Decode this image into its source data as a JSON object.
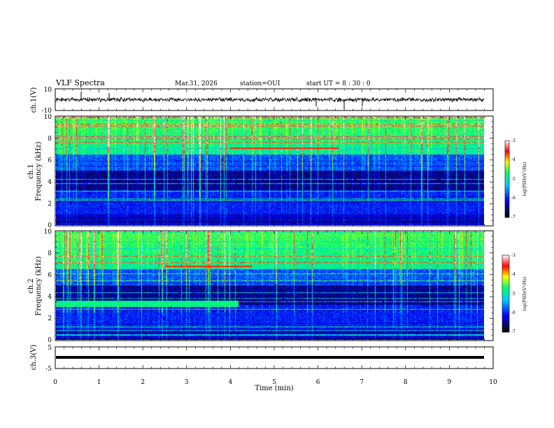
{
  "header": {
    "title": "VLF Spectra",
    "date": "Mar.31, 2026",
    "station": "station=OUI",
    "start_ut": "start  UT =   8 : 30 : 0"
  },
  "colors": {
    "frame": "#000000",
    "background": "#ffffff",
    "colormap": [
      "#000000",
      "#08084a",
      "#0000ff",
      "#00d8ff",
      "#00ff66",
      "#ffff00",
      "#ff0000",
      "#ffffff"
    ]
  },
  "chart_data": [
    {
      "id": "ch1_waveform",
      "type": "line",
      "ylabel": "ch.1(V)",
      "ylim": [
        -10,
        10
      ],
      "yticks": [
        "10",
        "-10"
      ],
      "xlim": [
        0,
        10
      ],
      "trace_baseline": 0,
      "trace_amplitude": 2,
      "note": "dense noise waveform near zero"
    },
    {
      "id": "ch1_spectrogram",
      "type": "heatmap",
      "ylabel": "ch.1\nFrequency (kHz)",
      "ylabel_line1": "ch.1",
      "ylabel_line2": "Frequency (kHz)",
      "ylim": [
        0,
        10
      ],
      "yticks": [
        "0",
        "2",
        "4",
        "6",
        "8",
        "10"
      ],
      "xlim": [
        0,
        9.85
      ],
      "colorbar": {
        "label": "log(PSD)(V²/Hz)",
        "range": [
          -7,
          -3
        ],
        "ticks": [
          "-3",
          "-4",
          "-5",
          "-6",
          "-7"
        ]
      },
      "features": {
        "dark_band_khz": [
          3.2,
          5.0
        ],
        "bright_top_khz": [
          6.5,
          10
        ],
        "red_segment": {
          "t": [
            4.0,
            6.5
          ],
          "f": 7.1
        }
      }
    },
    {
      "id": "ch2_spectrogram",
      "type": "heatmap",
      "ylabel": "ch.2\nFrequency (kHz)",
      "ylabel_line1": "ch.2",
      "ylabel_line2": "Frequency (kHz)",
      "ylim": [
        0,
        10
      ],
      "yticks": [
        "0",
        "2",
        "4",
        "6",
        "8",
        "10"
      ],
      "xlim": [
        0,
        9.85
      ],
      "colorbar": {
        "label": "log(PSD)(V²/Hz)",
        "range": [
          -7,
          -3
        ],
        "ticks": [
          "-3",
          "-4",
          "-5",
          "-6",
          "-7"
        ]
      },
      "features": {
        "bright_band": {
          "t": [
            0,
            4.2
          ],
          "f": [
            3.0,
            3.6
          ]
        },
        "bright_top_khz": [
          6.5,
          10
        ],
        "red_segment": {
          "t": [
            2.5,
            4.5
          ],
          "f": 6.8
        }
      }
    },
    {
      "id": "ch3_waveform",
      "type": "line",
      "ylabel": "ch.3(V)",
      "ylim": [
        -5,
        5
      ],
      "yticks": [
        "5",
        "-5"
      ],
      "xlim": [
        0,
        10
      ],
      "trace_baseline": 0,
      "note": "thick flat trace near zero"
    }
  ],
  "xaxis": {
    "label": "Time  (min)",
    "ticks": [
      "0",
      "1",
      "2",
      "3",
      "4",
      "5",
      "6",
      "7",
      "8",
      "9",
      "10"
    ],
    "range": [
      0,
      10
    ]
  }
}
